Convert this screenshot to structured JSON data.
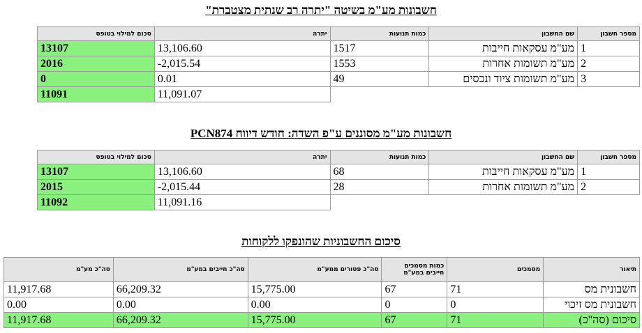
{
  "section1": {
    "title": "חשבונות מע\"מ בשיטה \"יתרה רב שנתית מצטברת\"",
    "headers": {
      "account_no": "מספר חשבון",
      "account_name": "שם החשבון",
      "count": "כמות תנועות",
      "balance": "יתרה",
      "form_amount": "סכום למילוי בטופס"
    },
    "rows": [
      {
        "no": "1",
        "name": "מע\"מ עסקאות חייבות",
        "count": "1517",
        "balance": "13,106.60",
        "amount": "13107"
      },
      {
        "no": "2",
        "name": "מע\"מ תשומות אחרות",
        "count": "1553",
        "balance": "-2,015.54",
        "amount": "2016"
      },
      {
        "no": "3",
        "name": "מע\"מ תשומות ציוד ונכסים",
        "count": "49",
        "balance": "0.01",
        "amount": "0"
      }
    ],
    "total": {
      "balance": "11,091.07",
      "amount": "11091"
    }
  },
  "section2": {
    "title": "חשבונות מע\"מ מסוננים ע\"פ השדה: חודש דיווח PCN874",
    "headers": {
      "account_no": "מספר חשבון",
      "account_name": "שם החשבון",
      "count": "כמות תנועות",
      "balance": "יתרה",
      "form_amount": "סכום למילוי בטופס"
    },
    "rows": [
      {
        "no": "1",
        "name": "מע\"מ עסקאות חייבות",
        "count": "68",
        "balance": "13,106.60",
        "amount": "13107"
      },
      {
        "no": "2",
        "name": "מע\"מ תשומות אחרות",
        "count": "28",
        "balance": "-2,015.44",
        "amount": "2015"
      }
    ],
    "total": {
      "balance": "11,091.16",
      "amount": "11092"
    }
  },
  "section3": {
    "title": "סיכום החשבוניות שהונפקו ללקוחות",
    "headers": {
      "description": "תיאור",
      "documents": "מסמכים",
      "vat_docs": "כמות מסמכים חייבים במע\"מ",
      "exempt_total": "סה\"כ פטורים ממע\"מ",
      "taxable_total": "סה\"כ חייבים במע\"מ",
      "vat_total": "סה\"כ מע\"מ"
    },
    "rows": [
      {
        "description": "חשבונית מס",
        "documents": "71",
        "vat_docs": "67",
        "exempt": "15,775.00",
        "taxable": "66,209.32",
        "vat": "11,917.68"
      },
      {
        "description": "חשבונית מס זיכוי",
        "documents": "0",
        "vat_docs": "0",
        "exempt": "0.00",
        "taxable": "0.00",
        "vat": "0.00"
      }
    ],
    "summary": {
      "description": "סיכום (סה\"כ)",
      "documents": "71",
      "vat_docs": "67",
      "exempt": "15,775.00",
      "taxable": "66,209.32",
      "vat": "11,917.68"
    }
  },
  "colors": {
    "highlight": "#8af07e",
    "header_bg": "#e4e4e4",
    "border": "#9a9a9a"
  }
}
